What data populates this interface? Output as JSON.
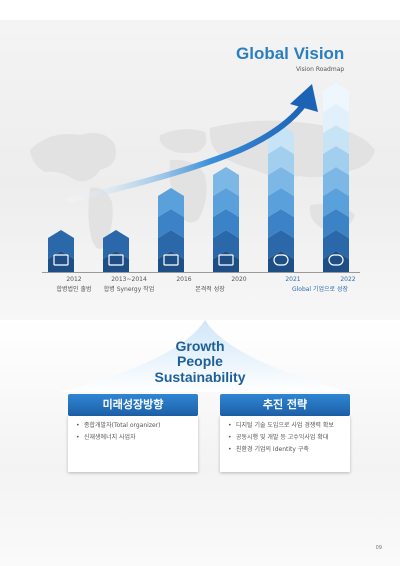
{
  "header": {
    "title": "Global Vision",
    "subtitle": "Vision Roadmap"
  },
  "roadmap": {
    "milestones": [
      {
        "year": "2012",
        "desc": "합병법인 출범",
        "level": 2,
        "icon": "handshake-icon"
      },
      {
        "year": "2013~2014",
        "desc": "합병 Synergy 작업",
        "level": 2,
        "icon": "document-stack-icon"
      },
      {
        "year": "2016",
        "desc": "본격적 성장",
        "level": 4,
        "icon": "bar-growth-icon"
      },
      {
        "year": "2020",
        "desc": "",
        "level": 5,
        "icon": "bar-growth-icon"
      },
      {
        "year": "2021",
        "desc": "Global 기업으로 성장",
        "level": 7,
        "icon": "globe-network-icon"
      },
      {
        "year": "2022",
        "desc": "",
        "level": 9,
        "icon": "globe-network-icon"
      }
    ]
  },
  "growth": {
    "line1": "Growth",
    "line2": "People",
    "line3": "Sustainability"
  },
  "panels": {
    "left": {
      "title": "미래성장방향",
      "items": [
        "종합개발자(Total organizer)",
        "신재생에너지 사업자"
      ]
    },
    "right": {
      "title": "추진 전략",
      "items": [
        "디지털 기술 도입으로 사업 경쟁력 확보",
        "공동시행 및 개발 등 고수익사업 확대",
        "친환경 기업의 Identity 구축"
      ]
    }
  },
  "footer": {
    "page_number": "09"
  },
  "colors": {
    "accent": "#2b7fc1",
    "bar_dark": "#1d4f86",
    "bar_light": "#5aa0db",
    "panel_head": "#2b78c6"
  }
}
